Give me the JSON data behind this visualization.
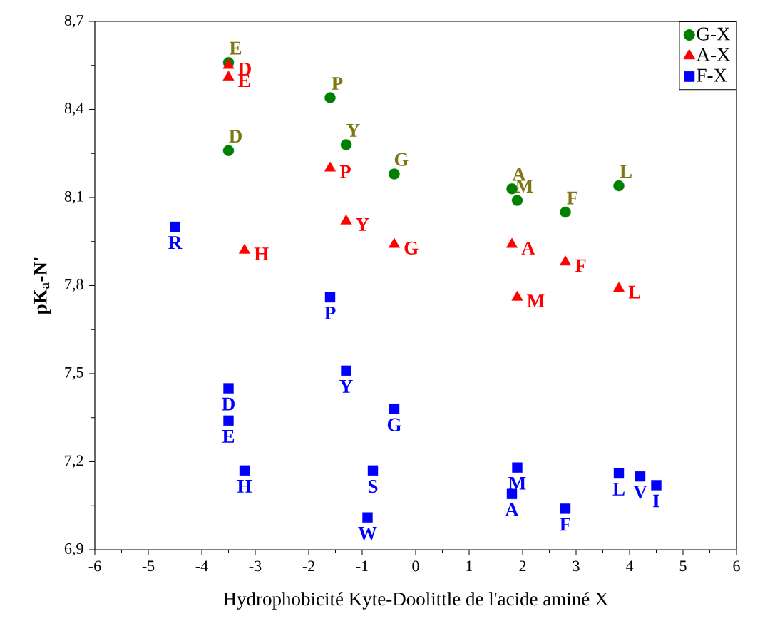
{
  "chart_data": {
    "type": "scatter",
    "xlabel": "Hydrophobicité Kyte-Doolittle de l'acide aminé X",
    "ylabel": "pK$_{a}$-N'",
    "xlim": [
      -6,
      6
    ],
    "xticks": [
      -6,
      -5,
      -4,
      -3,
      -2,
      -1,
      0,
      1,
      2,
      3,
      4,
      5,
      6
    ],
    "ylim": [
      6.9,
      8.7
    ],
    "yticks": [
      {
        "value": 6.9,
        "label": "6,9"
      },
      {
        "value": 7.2,
        "label": "7,2"
      },
      {
        "value": 7.5,
        "label": "7,5"
      },
      {
        "value": 7.8,
        "label": "7,8"
      },
      {
        "value": 8.1,
        "label": "8,1"
      },
      {
        "value": 8.4,
        "label": "8,4"
      },
      {
        "value": 8.7,
        "label": "8,7"
      }
    ],
    "legend": "top right",
    "grid": false,
    "series": [
      {
        "name": "G-X",
        "color": "#008000",
        "marker": "circle",
        "x": [
          -3.5,
          -3.5,
          -1.6,
          -1.3,
          -0.4,
          1.8,
          1.9,
          2.8,
          3.8
        ],
        "values": [
          8.56,
          8.26,
          8.44,
          8.28,
          8.18,
          8.13,
          8.09,
          8.05,
          8.14
        ]
      },
      {
        "name": "A-X",
        "color": "#ff0000",
        "marker": "triangle",
        "x": [
          -3.5,
          -3.5,
          -1.6,
          -1.3,
          -3.2,
          -0.4,
          1.8,
          2.8,
          1.9,
          3.8
        ],
        "values": [
          8.55,
          8.51,
          8.2,
          8.02,
          7.92,
          7.94,
          7.94,
          7.88,
          7.76,
          7.79
        ]
      },
      {
        "name": "F-X",
        "color": "#0000ff",
        "marker": "square",
        "x": [
          -4.5,
          -1.6,
          -1.3,
          -3.5,
          -3.5,
          -0.4,
          -3.2,
          -0.8,
          -0.9,
          1.9,
          1.8,
          2.8,
          3.8,
          4.2,
          4.5
        ],
        "values": [
          8.0,
          7.76,
          7.51,
          7.45,
          7.34,
          7.38,
          7.17,
          7.17,
          7.01,
          7.18,
          7.09,
          7.04,
          7.16,
          7.15,
          7.12
        ]
      }
    ],
    "annotations": [
      {
        "text": "E",
        "x": -3.5,
        "y": 8.56
      },
      {
        "text": "D",
        "x": -3.5,
        "y": 8.26
      },
      {
        "text": "P",
        "x": -1.6,
        "y": 8.44
      },
      {
        "text": "Y",
        "x": -1.3,
        "y": 8.28
      },
      {
        "text": "G",
        "x": -0.4,
        "y": 8.18
      },
      {
        "text": "A",
        "x": 1.8,
        "y": 8.13
      },
      {
        "text": "M",
        "x": 1.9,
        "y": 8.09
      },
      {
        "text": "F",
        "x": 2.8,
        "y": 8.05
      },
      {
        "text": "L",
        "x": 3.8,
        "y": 8.14
      },
      {
        "text": "D",
        "x": -3.5,
        "y": 8.55
      },
      {
        "text": "E",
        "x": -3.5,
        "y": 8.51
      },
      {
        "text": "P",
        "x": -1.6,
        "y": 8.2
      },
      {
        "text": "Y",
        "x": -1.3,
        "y": 8.02
      },
      {
        "text": "H",
        "x": -3.2,
        "y": 7.92
      },
      {
        "text": "G",
        "x": -0.4,
        "y": 7.94
      },
      {
        "text": "A",
        "x": 1.8,
        "y": 7.94
      },
      {
        "text": "F",
        "x": 2.8,
        "y": 7.88
      },
      {
        "text": "M",
        "x": 1.9,
        "y": 7.76
      },
      {
        "text": "L",
        "x": 3.8,
        "y": 7.79
      },
      {
        "text": "R",
        "x": -4.5,
        "y": 8.0
      },
      {
        "text": "P",
        "x": -1.6,
        "y": 7.76
      },
      {
        "text": "Y",
        "x": -1.3,
        "y": 7.51
      },
      {
        "text": "D",
        "x": -3.5,
        "y": 7.45
      },
      {
        "text": "E",
        "x": -3.5,
        "y": 7.34
      },
      {
        "text": "G",
        "x": -0.4,
        "y": 7.38
      },
      {
        "text": "H",
        "x": -3.2,
        "y": 7.17
      },
      {
        "text": "S",
        "x": -0.8,
        "y": 7.17
      },
      {
        "text": "W",
        "x": -0.9,
        "y": 7.01
      },
      {
        "text": "M",
        "x": 1.9,
        "y": 7.18
      },
      {
        "text": "A",
        "x": 1.8,
        "y": 7.09
      },
      {
        "text": "F",
        "x": 2.8,
        "y": 7.04
      },
      {
        "text": "L",
        "x": 3.8,
        "y": 7.16
      },
      {
        "text": "V",
        "x": 4.2,
        "y": 7.15
      },
      {
        "text": "I",
        "x": 4.5,
        "y": 7.12
      }
    ]
  }
}
